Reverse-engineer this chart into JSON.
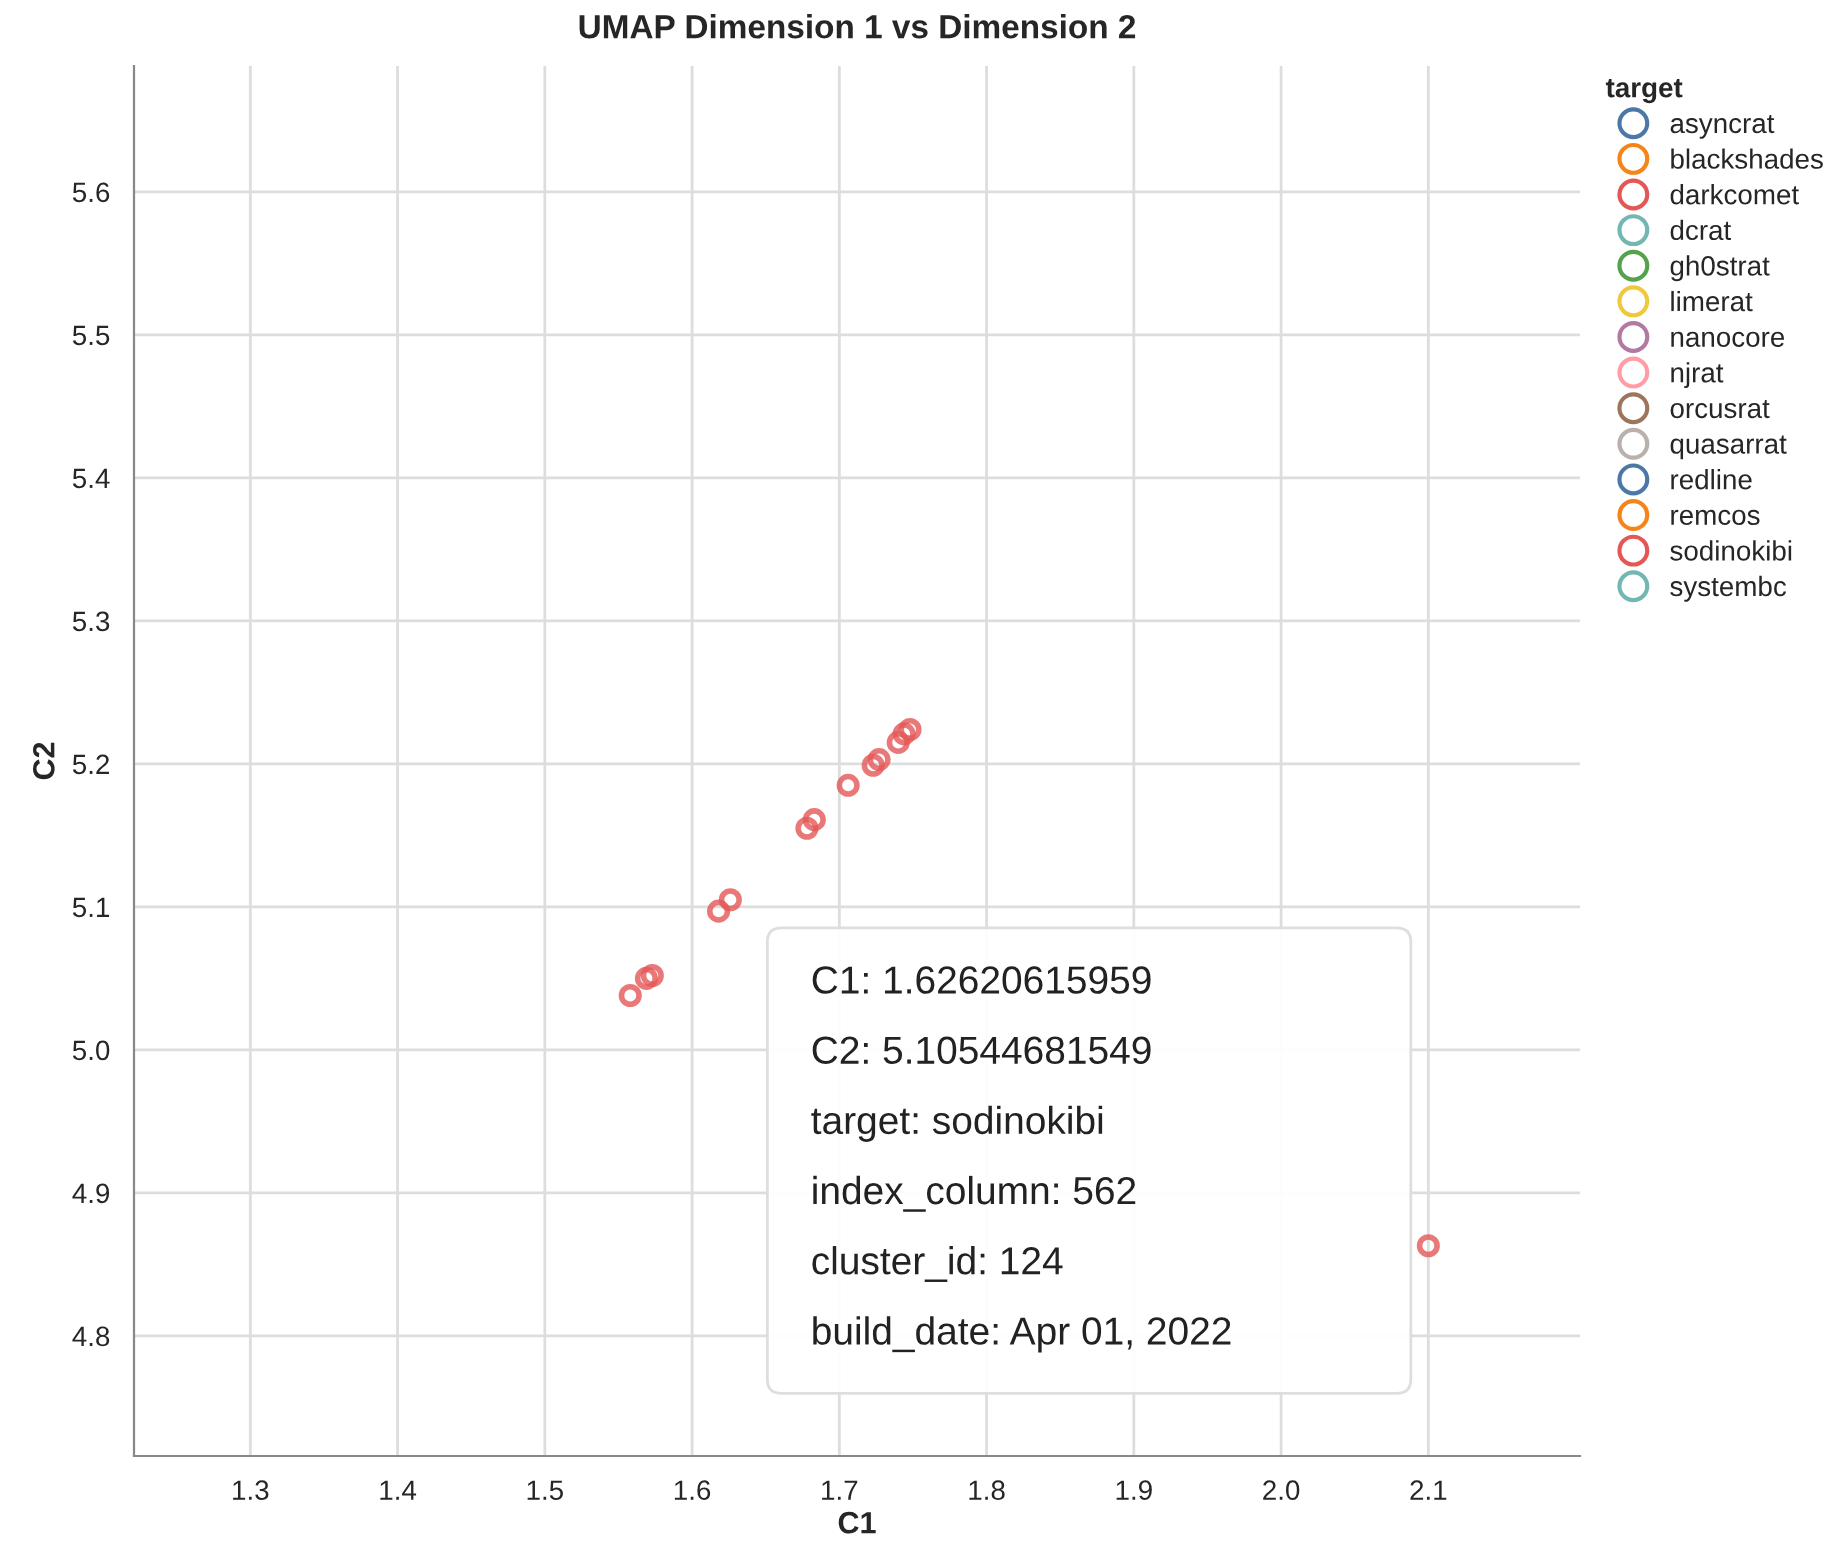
{
  "chart_data": {
    "type": "scatter",
    "title": "UMAP Dimension 1 vs Dimension 2",
    "xlabel": "C1",
    "ylabel": "C2",
    "legend_title": "target",
    "xlim": [
      1.221,
      2.203
    ],
    "xticks": [
      1.3,
      1.4,
      1.5,
      1.6,
      1.7,
      1.8,
      1.9,
      {
        "value": 2,
        "label": "2.0"
      },
      2.1
    ],
    "ylim": [
      4.716,
      5.688
    ],
    "yticks": [
      4.8,
      4.9,
      {
        "value": 5,
        "label": "5.0"
      },
      5.1,
      5.2,
      5.3,
      5.4,
      5.5,
      5.6
    ],
    "grid": true,
    "legend": "top right",
    "marker": "circle",
    "series": [
      {
        "name": "asyncrat",
        "color": "#4c78a8"
      },
      {
        "name": "blackshades",
        "color": "#f58518"
      },
      {
        "name": "darkcomet",
        "color": "#e45756"
      },
      {
        "name": "dcrat",
        "color": "#72b7b2"
      },
      {
        "name": "gh0strat",
        "color": "#54a24b"
      },
      {
        "name": "limerat",
        "color": "#eeca3b"
      },
      {
        "name": "nanocore",
        "color": "#b279a2"
      },
      {
        "name": "njrat",
        "color": "#ff9da6"
      },
      {
        "name": "orcusrat",
        "color": "#9d755d"
      },
      {
        "name": "quasarrat",
        "color": "#bab0ac"
      },
      {
        "name": "redline",
        "color": "#4c78a8"
      },
      {
        "name": "remcos",
        "color": "#f58518"
      },
      {
        "name": "sodinokibi",
        "color": "#e45756",
        "x": [
          1.558,
          1.569,
          1.573,
          1.618,
          1.626,
          1.678,
          1.683,
          1.706,
          1.723,
          1.727,
          1.74,
          1.744,
          1.748,
          2.062,
          2.1
        ],
        "values": [
          5.038,
          5.05,
          5.052,
          5.097,
          5.105,
          5.155,
          5.161,
          5.185,
          5.199,
          5.203,
          5.215,
          5.221,
          5.224,
          null,
          4.863
        ]
      },
      {
        "name": "systembc",
        "color": "#72b7b2"
      }
    ],
    "annotations": [
      "C1: 1.62620615959",
      "C2: 5.10544681549",
      "target: sodinokibi",
      "index_column: 562",
      "cluster_id: 124",
      "build_date: Apr 01, 2022"
    ]
  }
}
